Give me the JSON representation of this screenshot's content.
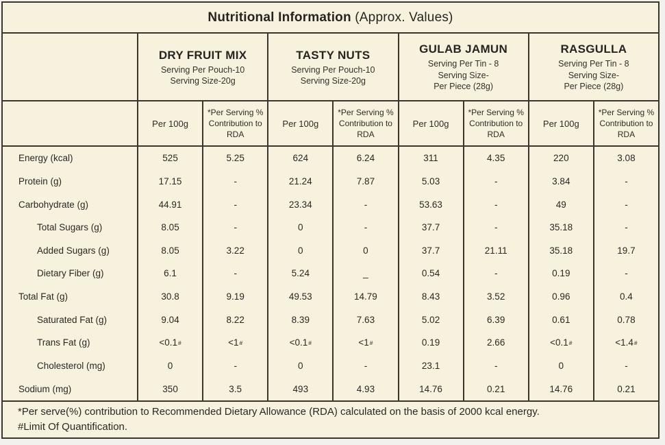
{
  "title": {
    "main": "Nutritional Information",
    "suffix": " (Approx. Values)"
  },
  "header": {
    "products": [
      {
        "name": "DRY FRUIT MIX",
        "serving_lines": [
          "Serving Per Pouch-10",
          "Serving Size-20g"
        ]
      },
      {
        "name": "TASTY NUTS",
        "serving_lines": [
          "Serving Per Pouch-10",
          "Serving Size-20g"
        ]
      },
      {
        "name": "GULAB JAMUN",
        "serving_lines": [
          "Serving Per Tin - 8",
          "Serving Size-",
          "Per Piece (28g)"
        ]
      },
      {
        "name": "RASGULLA",
        "serving_lines": [
          "Serving Per Tin - 8",
          "Serving Size-",
          "Per Piece (28g)"
        ]
      }
    ],
    "per_100g_label": "Per 100g",
    "rda_label": "*Per Serving % Contribution to RDA"
  },
  "rows": [
    {
      "label": "Energy (kcal)",
      "indent": false,
      "values": [
        "525",
        "5.25",
        "624",
        "6.24",
        "311",
        "4.35",
        "220",
        "3.08"
      ]
    },
    {
      "label": "Protein (g)",
      "indent": false,
      "values": [
        "17.15",
        "-",
        "21.24",
        "7.87",
        "5.03",
        "-",
        "3.84",
        "-"
      ]
    },
    {
      "label": "Carbohydrate (g)",
      "indent": false,
      "values": [
        "44.91",
        "-",
        "23.34",
        "-",
        "53.63",
        "-",
        "49",
        "-"
      ]
    },
    {
      "label": "Total Sugars (g)",
      "indent": true,
      "values": [
        "8.05",
        "-",
        "0",
        "-",
        "37.7",
        "-",
        "35.18",
        "-"
      ]
    },
    {
      "label": "Added Sugars (g)",
      "indent": true,
      "values": [
        "8.05",
        "3.22",
        "0",
        "0",
        "37.7",
        "21.11",
        "35.18",
        "19.7"
      ]
    },
    {
      "label": "Dietary Fiber (g)",
      "indent": true,
      "values": [
        "6.1",
        "-",
        "5.24",
        "_",
        "0.54",
        "-",
        "0.19",
        "-"
      ]
    },
    {
      "label": "Total Fat (g)",
      "indent": false,
      "values": [
        "30.8",
        "9.19",
        "49.53",
        "14.79",
        "8.43",
        "3.52",
        "0.96",
        "0.4"
      ]
    },
    {
      "label": "Saturated Fat (g)",
      "indent": true,
      "values": [
        "9.04",
        "8.22",
        "8.39",
        "7.63",
        "5.02",
        "6.39",
        "0.61",
        "0.78"
      ]
    },
    {
      "label": "Trans Fat (g)",
      "indent": true,
      "values": [
        "<0.1#",
        "<1#",
        "<0.1#",
        "<1#",
        "0.19",
        "2.66",
        "<0.1#",
        "<1.4#"
      ]
    },
    {
      "label": "Cholesterol (mg)",
      "indent": true,
      "values": [
        "0",
        "-",
        "0",
        "-",
        "23.1",
        "-",
        "0",
        "-"
      ]
    },
    {
      "label": "Sodium (mg)",
      "indent": false,
      "values": [
        "350",
        "3.5",
        "493",
        "4.93",
        "14.76",
        "0.21",
        "14.76",
        "0.21"
      ]
    }
  ],
  "footnotes": [
    "*Per serve(%) contribution to Recommended Dietary Allowance (RDA) calculated on the basis of 2000 kcal energy.",
    "#Limit Of Quantification."
  ],
  "colors": {
    "sheet_background": "#f7f2de",
    "border": "#3a362c",
    "text": "#272420",
    "page_background": "#f2f1ed"
  }
}
